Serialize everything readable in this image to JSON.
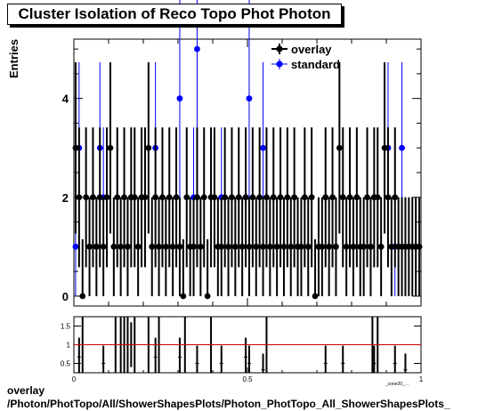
{
  "title": "Cluster Isolation of Reco Topo Phot Photon",
  "footer": {
    "line1": "overlay",
    "line2": "/Photon/PhotTopo/All/ShowerShapesPlots/Photon_PhotTopo_All_ShowerShapesPlots_"
  },
  "colors": {
    "overlay": "#000000",
    "standard": "#0000ff",
    "ratio_line": "#cc0000",
    "frame": "#000000"
  },
  "chart_data": [
    {
      "type": "scatter",
      "title": "Cluster Isolation of Reco Topo Phot Photon",
      "xlabel": "",
      "ylabel": "Entries",
      "xlim": [
        0,
        1
      ],
      "ylim": [
        -0.2,
        5.2
      ],
      "yticks": [
        0,
        2,
        4
      ],
      "ytick_labels": [
        "0",
        "2",
        "4"
      ],
      "legend": {
        "placement": "top-right",
        "entries": [
          "overlay",
          "standard"
        ]
      },
      "series": [
        {
          "name": "overlay",
          "marker": "circle",
          "color": "#000000",
          "x": [
            0.005,
            0.015,
            0.025,
            0.035,
            0.045,
            0.055,
            0.065,
            0.075,
            0.085,
            0.095,
            0.105,
            0.115,
            0.125,
            0.135,
            0.145,
            0.155,
            0.165,
            0.175,
            0.185,
            0.195,
            0.205,
            0.215,
            0.225,
            0.235,
            0.245,
            0.255,
            0.265,
            0.275,
            0.285,
            0.295,
            0.305,
            0.315,
            0.325,
            0.335,
            0.345,
            0.355,
            0.365,
            0.375,
            0.385,
            0.395,
            0.405,
            0.415,
            0.425,
            0.435,
            0.445,
            0.455,
            0.465,
            0.475,
            0.485,
            0.495,
            0.505,
            0.515,
            0.525,
            0.535,
            0.545,
            0.555,
            0.565,
            0.575,
            0.585,
            0.595,
            0.605,
            0.615,
            0.625,
            0.635,
            0.645,
            0.655,
            0.665,
            0.675,
            0.685,
            0.695,
            0.705,
            0.715,
            0.725,
            0.735,
            0.745,
            0.755,
            0.765,
            0.775,
            0.785,
            0.795,
            0.805,
            0.815,
            0.825,
            0.835,
            0.845,
            0.855,
            0.865,
            0.875,
            0.885,
            0.895,
            0.905,
            0.915,
            0.925,
            0.935,
            0.945,
            0.955,
            0.965,
            0.975,
            0.985,
            0.995
          ],
          "y": [
            3,
            2,
            0,
            2,
            1,
            2,
            1,
            2,
            1,
            2,
            3,
            1,
            2,
            1,
            2,
            1,
            2,
            2,
            1,
            2,
            2,
            3,
            1,
            2,
            1,
            2,
            1,
            2,
            1,
            2,
            1,
            0,
            2,
            1,
            1,
            2,
            1,
            2,
            0,
            2,
            2,
            1,
            1,
            2,
            1,
            2,
            1,
            2,
            1,
            2,
            1,
            2,
            1,
            2,
            1,
            2,
            1,
            2,
            1,
            2,
            1,
            2,
            1,
            2,
            1,
            1,
            2,
            1,
            2,
            0,
            1,
            1,
            2,
            1,
            2,
            1,
            3,
            2,
            1,
            2,
            1,
            2,
            1,
            1,
            2,
            1,
            2,
            2,
            1,
            3,
            2,
            1,
            2,
            1,
            1,
            1,
            1,
            1,
            1,
            1
          ]
        },
        {
          "name": "standard",
          "marker": "circle",
          "color": "#0000ff",
          "x": [
            0.005,
            0.015,
            0.065,
            0.075,
            0.085,
            0.165,
            0.235,
            0.305,
            0.345,
            0.355,
            0.425,
            0.495,
            0.505,
            0.545,
            0.725,
            0.775,
            0.805,
            0.855,
            0.865,
            0.905,
            0.915,
            0.925,
            0.945,
            0.955
          ],
          "y": [
            1,
            3,
            1,
            3,
            2,
            2,
            3,
            4,
            2,
            5,
            2,
            2,
            4,
            3,
            2,
            2,
            1,
            1,
            2,
            3,
            1,
            1,
            3,
            1
          ]
        }
      ]
    },
    {
      "type": "scatter",
      "title": "",
      "xlabel": "_cone20_...",
      "ylabel": "",
      "xlim": [
        0,
        1
      ],
      "ylim": [
        0.25,
        1.75
      ],
      "yticks": [
        0.5,
        1,
        1.5
      ],
      "ytick_labels": [
        "0.5",
        "1",
        "1.5"
      ],
      "xticks": [
        0,
        0.5,
        1
      ],
      "xtick_labels": [
        "0",
        "0.5",
        "1"
      ],
      "reference_line": 1,
      "series": [
        {
          "name": "",
          "marker": "dot",
          "color": "#000000",
          "x": [
            0.015,
            0.085,
            0.165,
            0.235,
            0.305,
            0.355,
            0.425,
            0.495,
            0.505,
            0.545,
            0.725,
            0.775,
            0.865,
            0.925,
            0.955
          ],
          "y": [
            0.67,
            0.5,
            1.0,
            0.67,
            0.67,
            0.5,
            0.5,
            0.67,
            0.5,
            0.33,
            0.5,
            0.5,
            0.5,
            0.5,
            0.33
          ]
        }
      ]
    }
  ]
}
